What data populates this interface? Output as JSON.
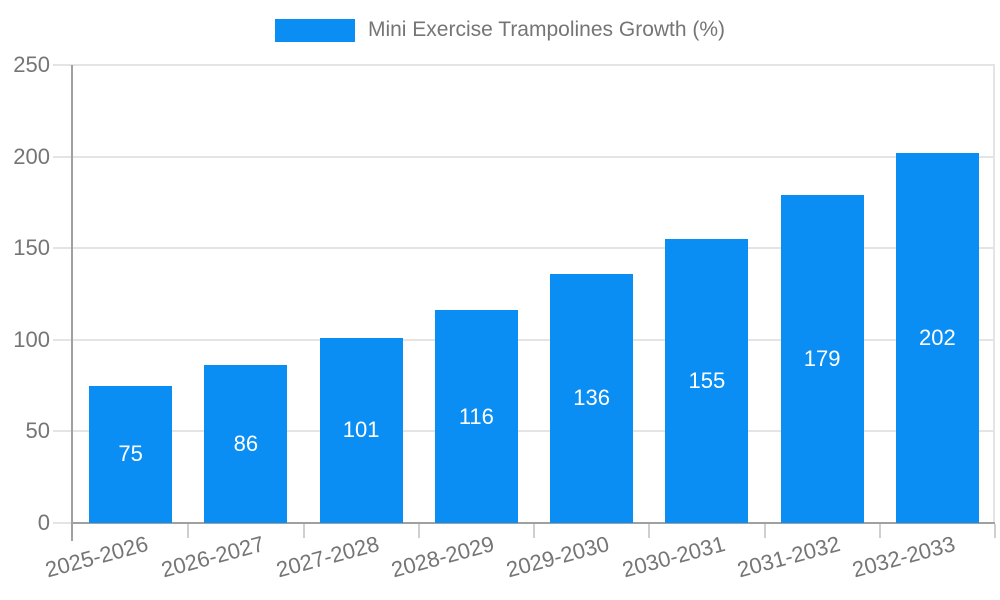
{
  "chart_data": {
    "type": "bar",
    "series_name": "Mini Exercise Trampolines Growth (%)",
    "legend_position": "top",
    "categories": [
      "2025-2026",
      "2026-2027",
      "2027-2028",
      "2028-2029",
      "2029-2030",
      "2030-2031",
      "2031-2032",
      "2032-2033"
    ],
    "values": [
      75,
      86,
      101,
      116,
      136,
      155,
      179,
      202
    ],
    "xlabel": "",
    "ylabel": "",
    "ylim": [
      0,
      250
    ],
    "yticks": [
      0,
      50,
      100,
      150,
      200,
      250
    ],
    "grid": true,
    "value_label_placement": "inside-center",
    "colors": {
      "bar": "#0a8ef4",
      "grid": "#e4e4e4",
      "axis": "#a0a0a0",
      "boundary_tick": "#cfcfcf",
      "text": "#757575",
      "value_label": "#ffffff",
      "background": "#ffffff"
    }
  }
}
